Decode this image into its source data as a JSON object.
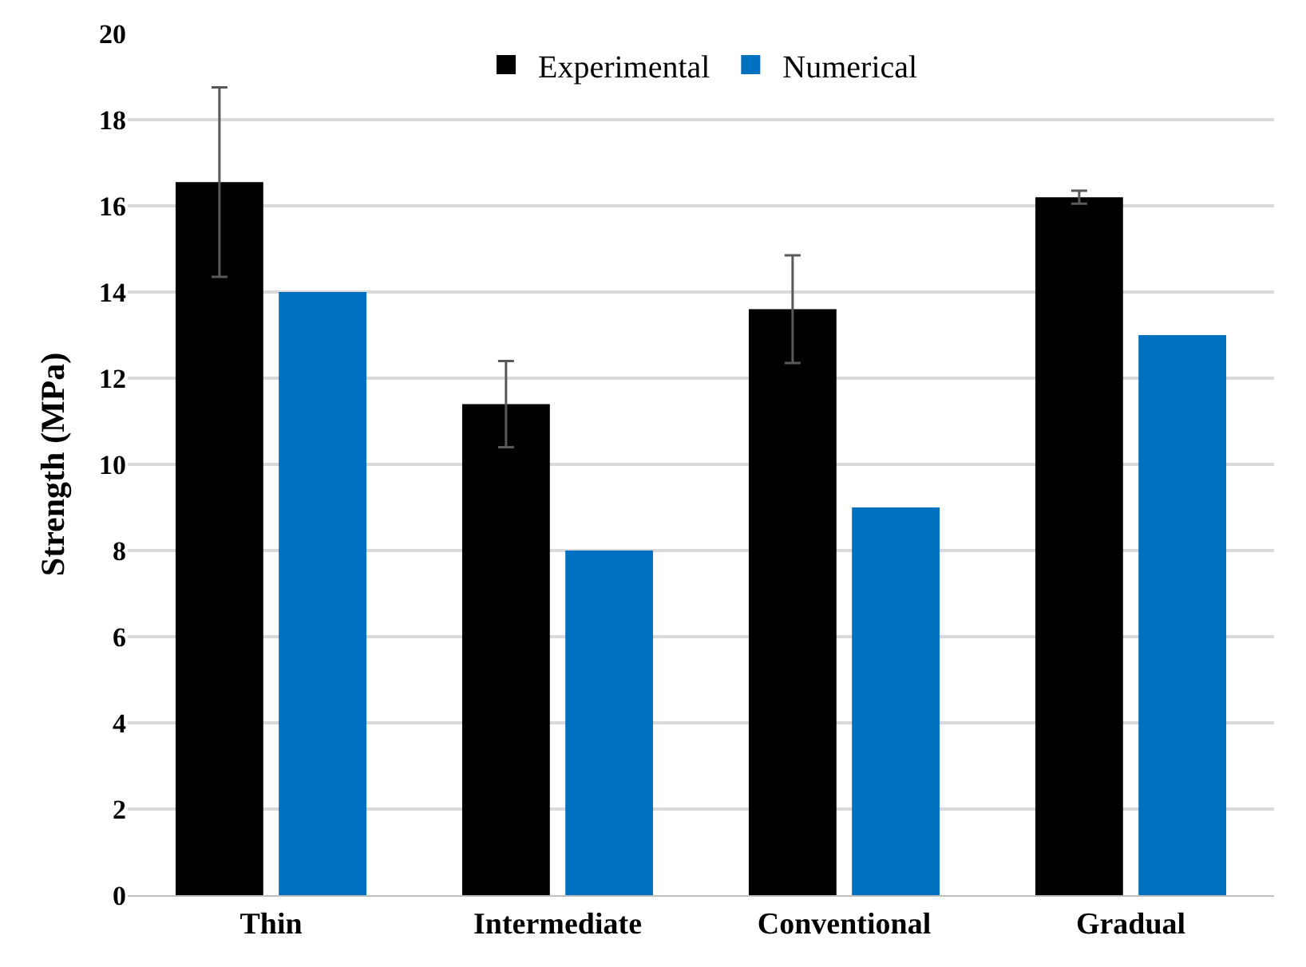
{
  "chart_data": {
    "type": "bar",
    "ylabel": "Strength (MPa)",
    "categories": [
      "Thin",
      "Intermediate",
      "Conventional",
      "Gradual"
    ],
    "series": [
      {
        "name": "Experimental",
        "color": "#000000",
        "values": [
          16.55,
          11.4,
          13.6,
          16.2
        ],
        "errors": [
          2.2,
          1.0,
          1.25,
          0.15
        ]
      },
      {
        "name": "Numerical",
        "color": "#0070c0",
        "values": [
          14,
          8,
          9,
          13
        ]
      }
    ],
    "ylim": [
      0,
      20
    ],
    "yticks": [
      0,
      2,
      4,
      6,
      8,
      10,
      12,
      14,
      16,
      18,
      20
    ],
    "grid": "y",
    "legend": "top"
  }
}
